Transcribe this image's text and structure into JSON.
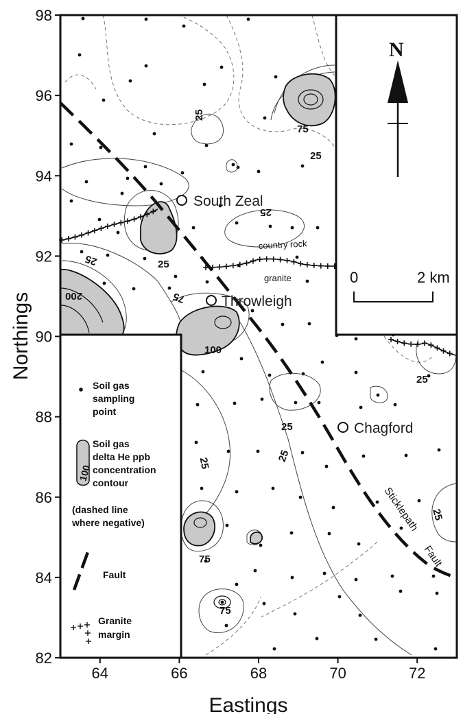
{
  "map": {
    "axes": {
      "x_title": "Eastings",
      "y_title": "Northings",
      "x_ticks": [
        "64",
        "66",
        "68",
        "70",
        "72"
      ],
      "y_ticks": [
        "98",
        "96",
        "94",
        "92",
        "90",
        "88",
        "86",
        "84",
        "82"
      ],
      "x_range": [
        63,
        73
      ],
      "y_range": [
        82,
        98
      ]
    },
    "places": {
      "south_zeal": "South Zeal",
      "throwleigh": "Throwleigh",
      "chagford": "Chagford"
    },
    "rock_labels": {
      "country_rock": "country rock",
      "granite": "granite"
    },
    "fault_label": {
      "part1": "Sticklepath",
      "part2": "Fault"
    },
    "contour_labels": {
      "c1": "25",
      "c2": "75",
      "c3": "25",
      "c4": "25",
      "c5": "25",
      "c6": "25",
      "c7": "200",
      "c8": "75",
      "c9": "100",
      "c10": "25",
      "c11": "25",
      "c12": "25",
      "c13": "25",
      "c14": "25",
      "c15": "75",
      "c16": "75"
    },
    "inset": {
      "north": "N",
      "scale_start": "0",
      "scale_end": "2 km"
    },
    "legend": {
      "sampling_1": "Soil gas",
      "sampling_2": "sampling",
      "sampling_3": "point",
      "contour_1": "Soil gas",
      "contour_2": "delta He ppb",
      "contour_3": "concentration",
      "contour_4": "contour",
      "contour_value": "100",
      "dashed_1": "(dashed line",
      "dashed_2": "where negative)",
      "fault": "Fault",
      "granite_1": "Granite",
      "granite_2": "margin"
    }
  }
}
